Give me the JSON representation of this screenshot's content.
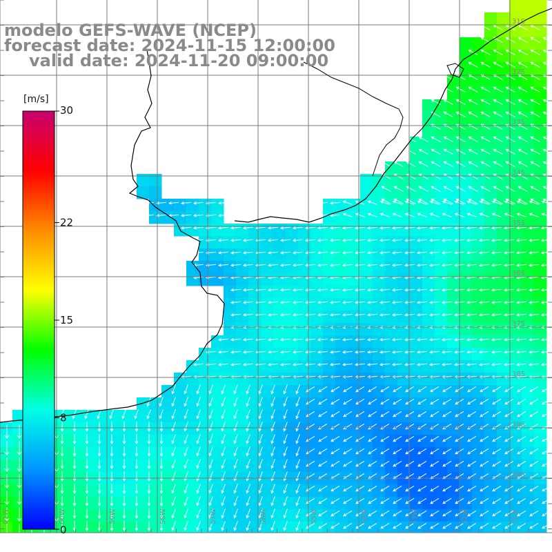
{
  "header": {
    "model": "modelo GEFS-WAVE (NCEP)",
    "forecast": "forecast date: 2024-11-15 12:00:00",
    "valid": "valid date: 2024-11-20 09:00:00"
  },
  "colorbar": {
    "unit": "[m/s]",
    "min": 0,
    "max": 30,
    "ticks": [
      "30",
      "22",
      "15",
      "8",
      "0"
    ],
    "tick_values": [
      30,
      22,
      15,
      8,
      0
    ],
    "colors": [
      "#0000ff",
      "#0096ff",
      "#00ffe6",
      "#00ff00",
      "#ffff00",
      "#ff8c00",
      "#ff0000",
      "#c8006e"
    ]
  },
  "grid": {
    "lat_labels": [
      "31S",
      "32S",
      "33S",
      "34S",
      "35S",
      "36S",
      "37S",
      "38S",
      "39S",
      "40S"
    ],
    "lon_labels": [
      "61W",
      "60W",
      "59W",
      "58W",
      "57W",
      "56W",
      "55W",
      "54W",
      "53W",
      "52W",
      "51W"
    ]
  },
  "colors": {
    "land": "#ffffff",
    "coast": "#000000",
    "grid": "#777777",
    "arrow": "#ffffff"
  }
}
